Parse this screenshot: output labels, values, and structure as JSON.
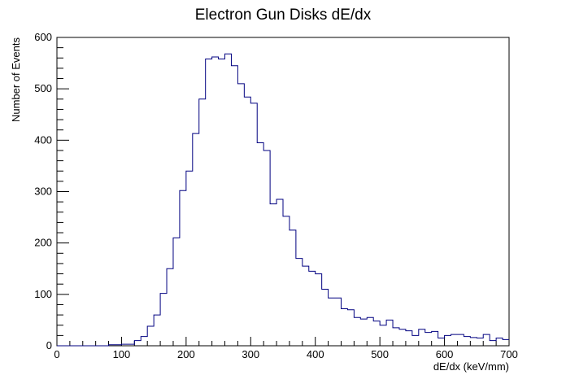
{
  "chart_data": {
    "type": "histogram",
    "title": "Electron Gun Disks dE/dx",
    "xlabel": "dE/dx (keV/mm)",
    "ylabel": "Number of Events",
    "xlim": [
      0,
      700
    ],
    "ylim": [
      0,
      600
    ],
    "grid": false,
    "legend": "none",
    "line_color": "#000080",
    "bin_width": 10,
    "bin_start": 0,
    "values": [
      0,
      0,
      0,
      0,
      0,
      0,
      0,
      0,
      2,
      2,
      3,
      3,
      10,
      18,
      38,
      60,
      102,
      150,
      210,
      302,
      340,
      413,
      480,
      558,
      562,
      558,
      568,
      545,
      510,
      484,
      472,
      395,
      380,
      276,
      285,
      252,
      225,
      170,
      155,
      145,
      140,
      110,
      93,
      93,
      72,
      70,
      55,
      52,
      55,
      48,
      40,
      50,
      35,
      32,
      29,
      20,
      32,
      26,
      28,
      15,
      20,
      22,
      22,
      18,
      16,
      15,
      22,
      10,
      15,
      12
    ]
  }
}
